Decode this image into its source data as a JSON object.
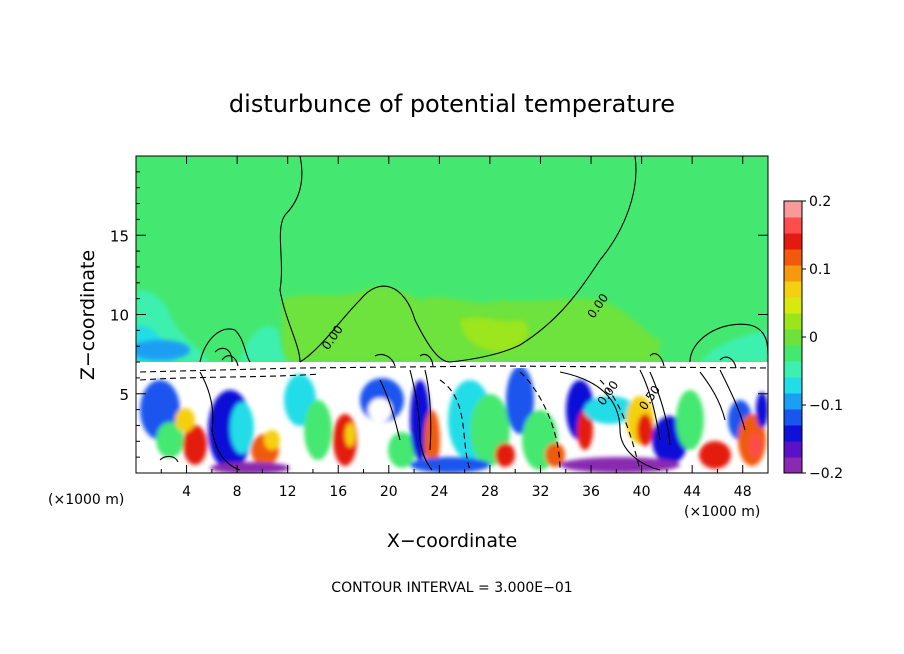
{
  "chart_data": {
    "type": "heatmap",
    "title": "disturbunce of potential temperature",
    "xlabel": "X−coordinate",
    "ylabel": "Z−coordinate",
    "x_unit": "(×1000 m)",
    "x_unit_right": "(×1000 m)",
    "xlim": [
      0,
      50
    ],
    "ylim": [
      0,
      20
    ],
    "xticks": [
      4,
      8,
      12,
      16,
      20,
      24,
      28,
      32,
      36,
      40,
      44,
      48
    ],
    "yticks": [
      5,
      10,
      15
    ],
    "footer": "CONTOUR INTERVAL = 3.000E−01",
    "colorbar": {
      "min": -0.2,
      "max": 0.2,
      "ticks": [
        {
          "value": 0.2,
          "label": "0.2"
        },
        {
          "value": 0.1,
          "label": "0.1"
        },
        {
          "value": 0,
          "label": "0"
        },
        {
          "value": -0.1,
          "label": "−0.1"
        },
        {
          "value": -0.2,
          "label": "−0.2"
        }
      ],
      "colors": [
        "#8a2ab0",
        "#5a12c8",
        "#1010d8",
        "#1a55ee",
        "#1a9ff2",
        "#22dde8",
        "#3ef0b0",
        "#44e870",
        "#6ee23c",
        "#9be61a",
        "#d6ea10",
        "#f5d010",
        "#f49a0c",
        "#f05a0a",
        "#e41a10",
        "#ff4c4c",
        "#f89a9a"
      ]
    },
    "contour_labels": [
      {
        "text": "0.00",
        "x": 15.8,
        "y": 8.4
      },
      {
        "text": "0.00",
        "x": 36.8,
        "y": 10.4
      },
      {
        "text": "0.00",
        "x": 37.6,
        "y": 4.9
      },
      {
        "text": "0.50",
        "x": 40.9,
        "y": 4.6
      }
    ]
  }
}
